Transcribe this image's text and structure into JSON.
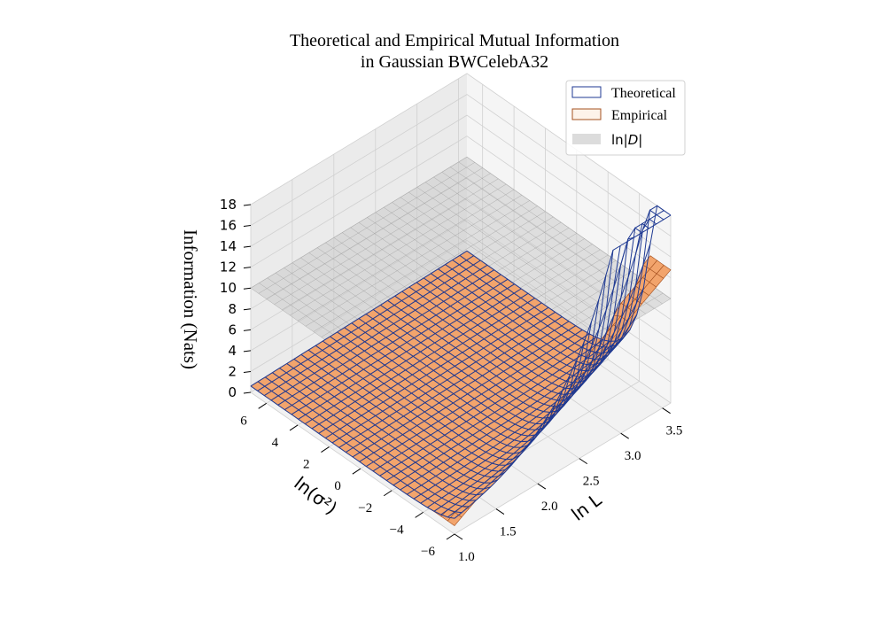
{
  "chart_data": {
    "type": "surface3d",
    "title_lines": [
      "Theoretical and Empirical Mutual Information",
      "in Gaussian BWCelebA32"
    ],
    "xlabel": "ln L",
    "ylabel": "ln(σ²)",
    "zlabel": "Information (Nats)",
    "xlim": [
      1.0,
      3.6
    ],
    "ylim": [
      -6,
      7
    ],
    "zlim": [
      0,
      18
    ],
    "xticks": [
      "1.0",
      "1.5",
      "2.0",
      "2.5",
      "3.0",
      "3.5"
    ],
    "yticks": [
      "−6",
      "−4",
      "−2",
      "0",
      "2",
      "4",
      "6"
    ],
    "zticks": [
      "0",
      "2",
      "4",
      "6",
      "8",
      "10",
      "12",
      "14",
      "16",
      "18"
    ],
    "grid": true,
    "legend_position": "top-right",
    "series": [
      {
        "name": "Theoretical",
        "color": "#1f3a93",
        "kind": "wireframe",
        "formula": "0.5 * L * ln(1 + 1/(L * sigma2)) * 1024 / L-normalised; diverges as ln(sigma2) → -6"
      },
      {
        "name": "Empirical",
        "color": "#c0652e",
        "fill": "#f3a56f",
        "kind": "surface",
        "formula": "min(theoretical, ln L + 0.6*(ln L - 1))"
      },
      {
        "name": "ln|D|",
        "color": "#bdbdbd",
        "kind": "plane",
        "value": 10
      }
    ],
    "legend_labels": {
      "theoretical": "Theoretical",
      "empirical": "Empirical",
      "plane_prefix": "ln|",
      "plane_var": "D",
      "plane_suffix": "|"
    }
  },
  "colors": {
    "theoretical_edge": "#1f3a93",
    "empirical_edge": "#a4501f",
    "empirical_fill": "#f2a46c",
    "plane_fill": "#c8c8c8",
    "pane": "#f2f2f2",
    "grid": "#d0d0d0"
  }
}
